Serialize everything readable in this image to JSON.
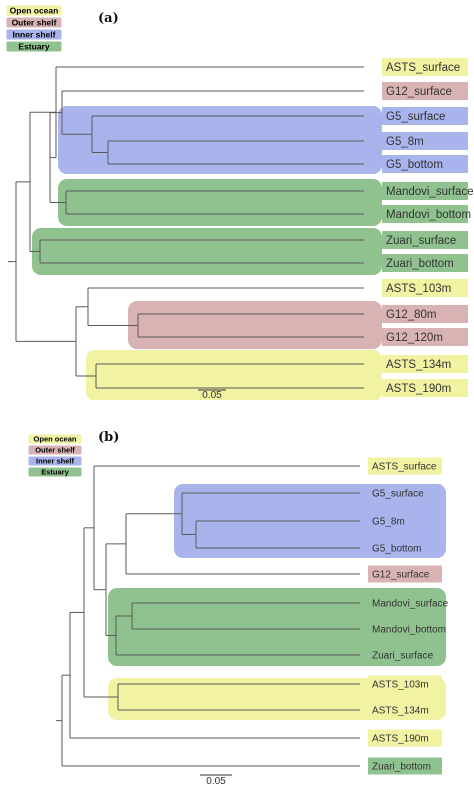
{
  "legend": [
    {
      "label": "Open ocean",
      "color": "#f2f2a3"
    },
    {
      "label": "Outer shelf",
      "color": "#d9b3b3"
    },
    {
      "label": "Inner shelf",
      "color": "#a9b4ec"
    },
    {
      "label": "Estuary",
      "color": "#90c290"
    }
  ],
  "panels": [
    {
      "label": "(a)",
      "scale_label": "0.05",
      "leaves": [
        {
          "name": "ASTS_surface",
          "habitat": "Open ocean"
        },
        {
          "name": "G12_surface",
          "habitat": "Outer shelf"
        },
        {
          "name": "G5_surface",
          "habitat": "Inner shelf"
        },
        {
          "name": "G5_8m",
          "habitat": "Inner shelf"
        },
        {
          "name": "G5_bottom",
          "habitat": "Inner shelf"
        },
        {
          "name": "Mandovi_surface",
          "habitat": "Estuary"
        },
        {
          "name": "Mandovi_bottom",
          "habitat": "Estuary"
        },
        {
          "name": "Zuari_surface",
          "habitat": "Estuary"
        },
        {
          "name": "Zuari_bottom",
          "habitat": "Estuary"
        },
        {
          "name": "ASTS_103m",
          "habitat": "Open ocean"
        },
        {
          "name": "G12_80m",
          "habitat": "Outer shelf"
        },
        {
          "name": "G12_120m",
          "habitat": "Outer shelf"
        },
        {
          "name": "ASTS_134m",
          "habitat": "Open ocean"
        },
        {
          "name": "ASTS_190m",
          "habitat": "Open ocean"
        }
      ]
    },
    {
      "label": "(b)",
      "scale_label": "0.05",
      "leaves": [
        {
          "name": "ASTS_surface",
          "habitat": "Open ocean"
        },
        {
          "name": "G5_surface",
          "habitat": "Inner shelf"
        },
        {
          "name": "G5_8m",
          "habitat": "Inner shelf"
        },
        {
          "name": "G5_bottom",
          "habitat": "Inner shelf"
        },
        {
          "name": "G12_surface",
          "habitat": "Outer shelf"
        },
        {
          "name": "Mandovi_surface",
          "habitat": "Estuary"
        },
        {
          "name": "Mandovi_bottom",
          "habitat": "Estuary"
        },
        {
          "name": "Zuari_surface",
          "habitat": "Estuary"
        },
        {
          "name": "ASTS_103m",
          "habitat": "Open ocean"
        },
        {
          "name": "ASTS_134m",
          "habitat": "Open ocean"
        },
        {
          "name": "ASTS_190m",
          "habitat": "Open ocean"
        },
        {
          "name": "Zuari_bottom",
          "habitat": "Estuary"
        }
      ]
    }
  ]
}
